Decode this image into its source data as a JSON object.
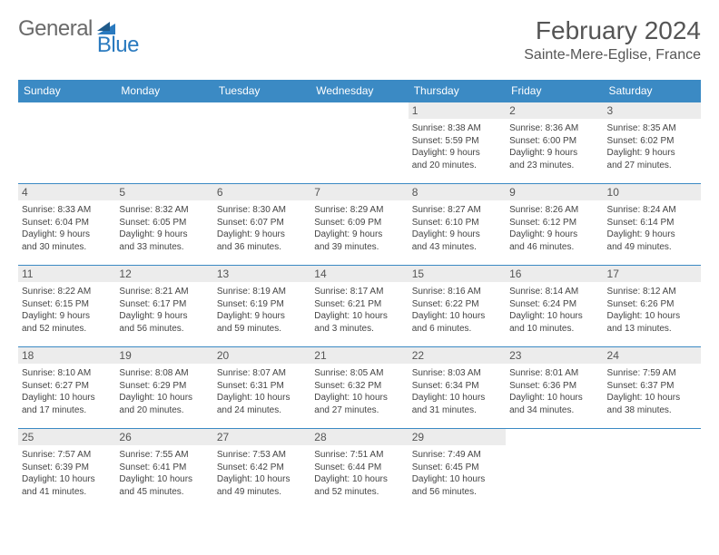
{
  "brand": {
    "name_part1": "General",
    "name_part2": "Blue",
    "color_gray": "#6a6a6a",
    "color_blue": "#2a7abf"
  },
  "header": {
    "month_title": "February 2024",
    "location": "Sainte-Mere-Eglise, France"
  },
  "style": {
    "header_bg": "#3b8ac4",
    "header_fg": "#ffffff",
    "daynum_bg": "#ececec",
    "border_color": "#3b8ac4",
    "body_font_size": 10,
    "header_font_size": 12,
    "title_font_size": 28,
    "location_font_size": 16
  },
  "weekdays": [
    "Sunday",
    "Monday",
    "Tuesday",
    "Wednesday",
    "Thursday",
    "Friday",
    "Saturday"
  ],
  "weeks": [
    [
      {
        "day": "",
        "lines": []
      },
      {
        "day": "",
        "lines": []
      },
      {
        "day": "",
        "lines": []
      },
      {
        "day": "",
        "lines": []
      },
      {
        "day": "1",
        "lines": [
          "Sunrise: 8:38 AM",
          "Sunset: 5:59 PM",
          "Daylight: 9 hours",
          "and 20 minutes."
        ]
      },
      {
        "day": "2",
        "lines": [
          "Sunrise: 8:36 AM",
          "Sunset: 6:00 PM",
          "Daylight: 9 hours",
          "and 23 minutes."
        ]
      },
      {
        "day": "3",
        "lines": [
          "Sunrise: 8:35 AM",
          "Sunset: 6:02 PM",
          "Daylight: 9 hours",
          "and 27 minutes."
        ]
      }
    ],
    [
      {
        "day": "4",
        "lines": [
          "Sunrise: 8:33 AM",
          "Sunset: 6:04 PM",
          "Daylight: 9 hours",
          "and 30 minutes."
        ]
      },
      {
        "day": "5",
        "lines": [
          "Sunrise: 8:32 AM",
          "Sunset: 6:05 PM",
          "Daylight: 9 hours",
          "and 33 minutes."
        ]
      },
      {
        "day": "6",
        "lines": [
          "Sunrise: 8:30 AM",
          "Sunset: 6:07 PM",
          "Daylight: 9 hours",
          "and 36 minutes."
        ]
      },
      {
        "day": "7",
        "lines": [
          "Sunrise: 8:29 AM",
          "Sunset: 6:09 PM",
          "Daylight: 9 hours",
          "and 39 minutes."
        ]
      },
      {
        "day": "8",
        "lines": [
          "Sunrise: 8:27 AM",
          "Sunset: 6:10 PM",
          "Daylight: 9 hours",
          "and 43 minutes."
        ]
      },
      {
        "day": "9",
        "lines": [
          "Sunrise: 8:26 AM",
          "Sunset: 6:12 PM",
          "Daylight: 9 hours",
          "and 46 minutes."
        ]
      },
      {
        "day": "10",
        "lines": [
          "Sunrise: 8:24 AM",
          "Sunset: 6:14 PM",
          "Daylight: 9 hours",
          "and 49 minutes."
        ]
      }
    ],
    [
      {
        "day": "11",
        "lines": [
          "Sunrise: 8:22 AM",
          "Sunset: 6:15 PM",
          "Daylight: 9 hours",
          "and 52 minutes."
        ]
      },
      {
        "day": "12",
        "lines": [
          "Sunrise: 8:21 AM",
          "Sunset: 6:17 PM",
          "Daylight: 9 hours",
          "and 56 minutes."
        ]
      },
      {
        "day": "13",
        "lines": [
          "Sunrise: 8:19 AM",
          "Sunset: 6:19 PM",
          "Daylight: 9 hours",
          "and 59 minutes."
        ]
      },
      {
        "day": "14",
        "lines": [
          "Sunrise: 8:17 AM",
          "Sunset: 6:21 PM",
          "Daylight: 10 hours",
          "and 3 minutes."
        ]
      },
      {
        "day": "15",
        "lines": [
          "Sunrise: 8:16 AM",
          "Sunset: 6:22 PM",
          "Daylight: 10 hours",
          "and 6 minutes."
        ]
      },
      {
        "day": "16",
        "lines": [
          "Sunrise: 8:14 AM",
          "Sunset: 6:24 PM",
          "Daylight: 10 hours",
          "and 10 minutes."
        ]
      },
      {
        "day": "17",
        "lines": [
          "Sunrise: 8:12 AM",
          "Sunset: 6:26 PM",
          "Daylight: 10 hours",
          "and 13 minutes."
        ]
      }
    ],
    [
      {
        "day": "18",
        "lines": [
          "Sunrise: 8:10 AM",
          "Sunset: 6:27 PM",
          "Daylight: 10 hours",
          "and 17 minutes."
        ]
      },
      {
        "day": "19",
        "lines": [
          "Sunrise: 8:08 AM",
          "Sunset: 6:29 PM",
          "Daylight: 10 hours",
          "and 20 minutes."
        ]
      },
      {
        "day": "20",
        "lines": [
          "Sunrise: 8:07 AM",
          "Sunset: 6:31 PM",
          "Daylight: 10 hours",
          "and 24 minutes."
        ]
      },
      {
        "day": "21",
        "lines": [
          "Sunrise: 8:05 AM",
          "Sunset: 6:32 PM",
          "Daylight: 10 hours",
          "and 27 minutes."
        ]
      },
      {
        "day": "22",
        "lines": [
          "Sunrise: 8:03 AM",
          "Sunset: 6:34 PM",
          "Daylight: 10 hours",
          "and 31 minutes."
        ]
      },
      {
        "day": "23",
        "lines": [
          "Sunrise: 8:01 AM",
          "Sunset: 6:36 PM",
          "Daylight: 10 hours",
          "and 34 minutes."
        ]
      },
      {
        "day": "24",
        "lines": [
          "Sunrise: 7:59 AM",
          "Sunset: 6:37 PM",
          "Daylight: 10 hours",
          "and 38 minutes."
        ]
      }
    ],
    [
      {
        "day": "25",
        "lines": [
          "Sunrise: 7:57 AM",
          "Sunset: 6:39 PM",
          "Daylight: 10 hours",
          "and 41 minutes."
        ]
      },
      {
        "day": "26",
        "lines": [
          "Sunrise: 7:55 AM",
          "Sunset: 6:41 PM",
          "Daylight: 10 hours",
          "and 45 minutes."
        ]
      },
      {
        "day": "27",
        "lines": [
          "Sunrise: 7:53 AM",
          "Sunset: 6:42 PM",
          "Daylight: 10 hours",
          "and 49 minutes."
        ]
      },
      {
        "day": "28",
        "lines": [
          "Sunrise: 7:51 AM",
          "Sunset: 6:44 PM",
          "Daylight: 10 hours",
          "and 52 minutes."
        ]
      },
      {
        "day": "29",
        "lines": [
          "Sunrise: 7:49 AM",
          "Sunset: 6:45 PM",
          "Daylight: 10 hours",
          "and 56 minutes."
        ]
      },
      {
        "day": "",
        "lines": []
      },
      {
        "day": "",
        "lines": []
      }
    ]
  ]
}
